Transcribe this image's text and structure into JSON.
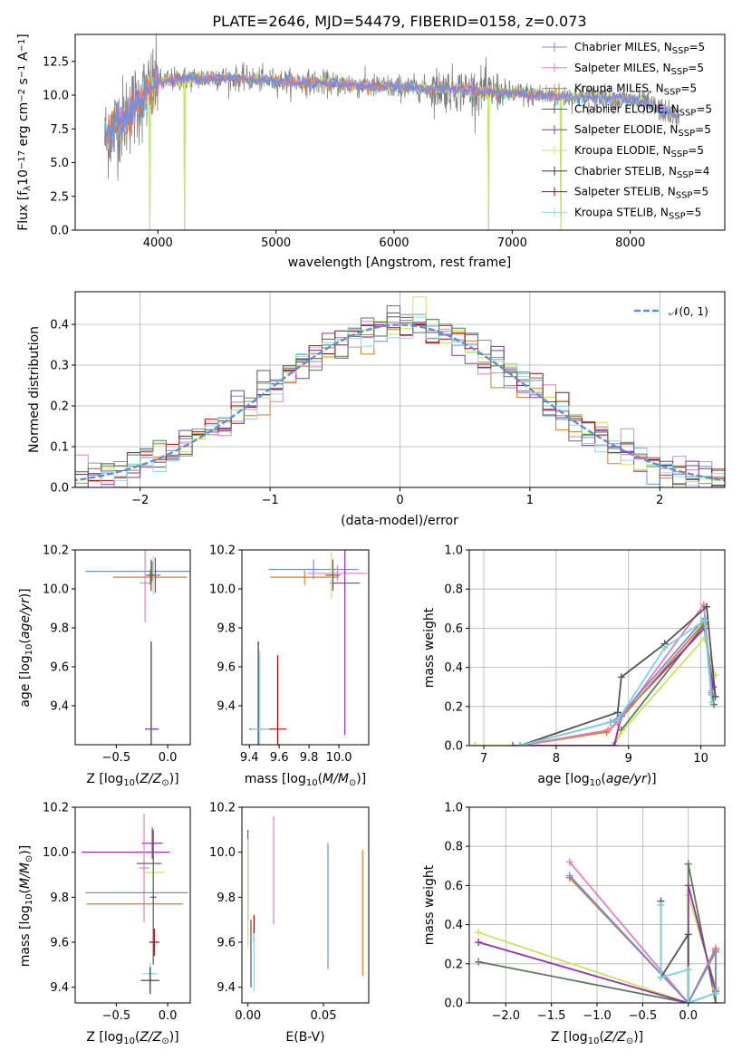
{
  "figure": {
    "title": "PLATE=2646, MJD=54479, FIBERID=0158, z=0.073",
    "colors": [
      "#6f8fe0",
      "#f07a6a",
      "#e57fbf",
      "#e1781e",
      "#9a2db3",
      "#c9e657",
      "#555555",
      "#b30000",
      "#8ed8ec",
      "#5a7a5a",
      "#808080",
      "#76d7d7"
    ]
  },
  "chart_data": [
    {
      "id": "spectrum",
      "type": "line",
      "xlabel": "wavelength [Angstrom, rest frame]",
      "ylabel": "Flux [f",
      "ylabel_parts": [
        "Flux [f",
        "λ",
        "10",
        "−17",
        " erg cm",
        "−2",
        " s",
        "−1",
        " A",
        "−1",
        "]"
      ],
      "xlim": [
        3300,
        8800
      ],
      "ylim": [
        0,
        14.5
      ],
      "xticks": [
        4000,
        5000,
        6000,
        7000,
        8000
      ],
      "yticks": [
        0.0,
        2.5,
        5.0,
        7.5,
        10.0,
        12.5
      ],
      "grid": false,
      "legend_position": "top-right",
      "legend": [
        {
          "text": "Chabrier MILES, N",
          "sub": "SSP",
          "tail": "=5",
          "color": "#6f8fe0"
        },
        {
          "text": "Salpeter MILES, N",
          "sub": "SSP",
          "tail": "=5",
          "color": "#e57fbf"
        },
        {
          "text": "Kroupa MILES, N",
          "sub": "SSP",
          "tail": "=5",
          "color": "#e1781e"
        },
        {
          "text": "Chabrier ELODIE, N",
          "sub": "SSP",
          "tail": "=5",
          "color": "#555555"
        },
        {
          "text": "Salpeter ELODIE, N",
          "sub": "SSP",
          "tail": "=5",
          "color": "#9a2db3"
        },
        {
          "text": "Kroupa ELODIE, N",
          "sub": "SSP",
          "tail": "=5",
          "color": "#c9e657"
        },
        {
          "text": "Chabrier STELIB, N",
          "sub": "SSP",
          "tail": "=4",
          "color": "#333333"
        },
        {
          "text": "Salpeter STELIB, N",
          "sub": "SSP",
          "tail": "=5",
          "color": "#b30000"
        },
        {
          "text": "Kroupa STELIB, N",
          "sub": "SSP",
          "tail": "=5",
          "color": "#8ed8ec"
        }
      ],
      "continuum": [
        [
          3550,
          6.8
        ],
        [
          3700,
          8.2
        ],
        [
          3850,
          9.6
        ],
        [
          4000,
          11.0
        ],
        [
          4200,
          11.2
        ],
        [
          4500,
          11.3
        ],
        [
          4800,
          11.2
        ],
        [
          5100,
          11.0
        ],
        [
          5400,
          10.9
        ],
        [
          5700,
          10.7
        ],
        [
          6000,
          10.6
        ],
        [
          6300,
          10.5
        ],
        [
          6600,
          10.4
        ],
        [
          6900,
          10.2
        ],
        [
          7200,
          10.0
        ],
        [
          7500,
          9.9
        ],
        [
          7800,
          9.8
        ],
        [
          8100,
          9.5
        ],
        [
          8400,
          8.4
        ]
      ],
      "dips": [
        [
          3934,
          0.0
        ],
        [
          4225,
          0.0
        ],
        [
          6800,
          0.0
        ],
        [
          7410,
          0.0
        ]
      ]
    },
    {
      "id": "residuals",
      "type": "line",
      "xlabel": "(data-model)/error",
      "ylabel": "Normed distribution",
      "xlim": [
        -2.5,
        2.5
      ],
      "ylim": [
        0,
        0.48
      ],
      "xticks": [
        -2,
        -1,
        0,
        1,
        2
      ],
      "xticklabels": [
        "−2",
        "−1",
        "0",
        "1",
        "2"
      ],
      "yticks": [
        0.0,
        0.1,
        0.2,
        0.3,
        0.4
      ],
      "grid": true,
      "legend_position": "top-right",
      "legend": [
        {
          "text": "𝒩(0, 1)",
          "color": "#5b8fd6"
        }
      ]
    },
    {
      "id": "age-vs-Z",
      "type": "scatter",
      "xlabel": "Z [log",
      "xlabel_parts": [
        "Z [log",
        "10",
        "(",
        "Z/Z",
        "⊙",
        ")]"
      ],
      "ylabel_parts": [
        "age  [log",
        "10",
        "(",
        "age/yr",
        ")]"
      ],
      "xlim": [
        -0.9,
        0.22
      ],
      "ylim": [
        9.2,
        10.2
      ],
      "xticks": [
        -0.5,
        0.0
      ],
      "xticklabels": [
        "−0.5",
        "0.0"
      ],
      "yticks": [
        9.4,
        9.6,
        9.8,
        10.0,
        10.2
      ],
      "points": [
        {
          "x": -0.15,
          "y": 10.09,
          "xerr": 0.65,
          "yerr": 0.05,
          "color": "#6f8fe0"
        },
        {
          "x": -0.17,
          "y": 10.06,
          "xerr": 0.36,
          "yerr": 0.04,
          "color": "#e1781e"
        },
        {
          "x": -0.22,
          "y": 10.03,
          "xerr": 0.05,
          "yerr": 0.2,
          "color": "#e57fbf"
        },
        {
          "x": -0.12,
          "y": 10.07,
          "xerr": 0.05,
          "yerr": 0.09,
          "color": "#9a2db3"
        },
        {
          "x": -0.14,
          "y": 10.07,
          "xerr": 0.04,
          "yerr": 0.1,
          "color": "#c9e657"
        },
        {
          "x": -0.16,
          "y": 10.07,
          "xerr": 0.05,
          "yerr": 0.08,
          "color": "#555555"
        },
        {
          "x": -0.16,
          "y": 9.28,
          "xerr": 0.06,
          "yerr": 0.45,
          "color": "#333333"
        },
        {
          "x": -0.15,
          "y": 9.28,
          "xerr": 0.05,
          "yerr": 0.0,
          "color": "#b30000"
        },
        {
          "x": -0.14,
          "y": 9.28,
          "xerr": 0.06,
          "yerr": 0.0,
          "color": "#8ed8ec"
        },
        {
          "x": -0.14,
          "y": 9.28,
          "xerr": 0.05,
          "yerr": 0.0,
          "color": "#9a2db3"
        }
      ]
    },
    {
      "id": "age-vs-mass",
      "type": "scatter",
      "xlabel_parts": [
        "mass [log",
        "10",
        "(",
        "M/M",
        "⊙",
        ")]"
      ],
      "xlim": [
        9.35,
        10.2
      ],
      "ylim": [
        9.2,
        10.2
      ],
      "xticks": [
        9.4,
        9.6,
        9.8,
        10.0
      ],
      "xticklabels": [
        "9.4",
        "9.6",
        "9.8",
        "10.0"
      ],
      "yticks": [
        9.4,
        9.6,
        9.8,
        10.0,
        10.2
      ],
      "points": [
        {
          "x": 9.83,
          "y": 10.1,
          "xerr": 0.3,
          "yerr": 0.05,
          "color": "#6f8fe0"
        },
        {
          "x": 9.77,
          "y": 10.06,
          "xerr": 0.23,
          "yerr": 0.04,
          "color": "#e1781e"
        },
        {
          "x": 9.99,
          "y": 10.08,
          "xerr": 0.2,
          "yerr": 0.04,
          "color": "#e57fbf"
        },
        {
          "x": 10.04,
          "y": 10.03,
          "xerr": 0.1,
          "yerr": 0.78,
          "color": "#9a2db3"
        },
        {
          "x": 9.95,
          "y": 10.07,
          "xerr": 0.04,
          "yerr": 0.12,
          "color": "#c9e657"
        },
        {
          "x": 9.96,
          "y": 10.07,
          "xerr": 0.05,
          "yerr": 0.08,
          "color": "#555555"
        },
        {
          "x": 9.46,
          "y": 9.28,
          "xerr": 0.06,
          "yerr": 0.45,
          "color": "#333333"
        },
        {
          "x": 9.59,
          "y": 9.28,
          "xerr": 0.06,
          "yerr": 0.38,
          "color": "#b30000"
        },
        {
          "x": 9.47,
          "y": 9.28,
          "xerr": 0.06,
          "yerr": 0.4,
          "color": "#8ed8ec"
        }
      ]
    },
    {
      "id": "massweight-vs-age",
      "type": "line",
      "ylabel": "mass weight",
      "xlabel_parts": [
        "age  [log",
        "10",
        "(",
        "age/yr",
        ")]"
      ],
      "xlim": [
        6.8,
        10.33
      ],
      "ylim": [
        0,
        1.0
      ],
      "xticks": [
        7,
        8,
        9,
        10
      ],
      "yticks": [
        0.0,
        0.2,
        0.4,
        0.6,
        0.8,
        1.0
      ],
      "grid": true,
      "series": [
        {
          "color": "#5a7a5a",
          "x": [
            6.88,
            8.8,
            8.9,
            10.05,
            10.18
          ],
          "y": [
            0.0,
            0.0,
            0.08,
            0.62,
            0.21
          ]
        },
        {
          "color": "#c9e657",
          "x": [
            6.88,
            8.78,
            8.88,
            10.05,
            10.2
          ],
          "y": [
            0.0,
            0.0,
            0.06,
            0.55,
            0.36
          ]
        },
        {
          "color": "#9a2db3",
          "x": [
            7.4,
            8.8,
            8.9,
            10.05,
            10.17
          ],
          "y": [
            0.0,
            0.0,
            0.15,
            0.6,
            0.3
          ]
        },
        {
          "color": "#e1781e",
          "x": [
            7.5,
            8.7,
            8.85,
            10.05,
            10.15
          ],
          "y": [
            0.0,
            0.07,
            0.12,
            0.63,
            0.27
          ]
        },
        {
          "color": "#e57fbf",
          "x": [
            7.5,
            8.72,
            8.87,
            10.04,
            10.15
          ],
          "y": [
            0.0,
            0.08,
            0.13,
            0.72,
            0.28
          ]
        },
        {
          "color": "#6f8fe0",
          "x": [
            7.5,
            8.75,
            8.88,
            10.05,
            10.15
          ],
          "y": [
            0.0,
            0.12,
            0.15,
            0.65,
            0.26
          ]
        },
        {
          "color": "#555555",
          "x": [
            7.5,
            8.85,
            8.9,
            9.5,
            10.08,
            10.2
          ],
          "y": [
            0.0,
            0.17,
            0.35,
            0.52,
            0.71,
            0.25
          ]
        },
        {
          "color": "#76d7d7",
          "x": [
            7.5,
            8.85,
            9.5,
            10.05,
            10.15
          ],
          "y": [
            0.0,
            0.13,
            0.5,
            0.64,
            0.22
          ]
        }
      ]
    },
    {
      "id": "mass-vs-Z",
      "type": "scatter",
      "xlabel_parts": [
        "Z [log",
        "10",
        "(",
        "Z/Z",
        "⊙",
        ")]"
      ],
      "ylabel_parts": [
        "mass [log",
        "10",
        "(",
        "M/M",
        "⊙",
        ")]"
      ],
      "xlim": [
        -0.9,
        0.22
      ],
      "ylim": [
        9.33,
        10.2
      ],
      "xticks": [
        -0.5,
        0.0
      ],
      "xticklabels": [
        "−0.5",
        "0.0"
      ],
      "yticks": [
        9.4,
        9.6,
        9.8,
        10.0,
        10.2
      ],
      "points": [
        {
          "x": -0.41,
          "y": 10.0,
          "xerr": 0.43,
          "yerr": 0.0,
          "color": "#9a2db3"
        },
        {
          "x": -0.15,
          "y": 10.04,
          "xerr": 0.1,
          "yerr": 0.07,
          "color": "#9a2db3"
        },
        {
          "x": -0.23,
          "y": 9.93,
          "xerr": 0.05,
          "yerr": 0.24,
          "color": "#e57fbf"
        },
        {
          "x": -0.18,
          "y": 9.95,
          "xerr": 0.12,
          "yerr": 0.0,
          "color": "#555555"
        },
        {
          "x": -0.13,
          "y": 9.91,
          "xerr": 0.1,
          "yerr": 0.0,
          "color": "#c9e657"
        },
        {
          "x": -0.3,
          "y": 9.82,
          "xerr": 0.5,
          "yerr": 0.0,
          "color": "#6f8fe0"
        },
        {
          "x": -0.32,
          "y": 9.77,
          "xerr": 0.47,
          "yerr": 0.0,
          "color": "#e1781e"
        },
        {
          "x": -0.14,
          "y": 9.8,
          "xerr": 0.03,
          "yerr": 0.3,
          "color": "#555555"
        },
        {
          "x": -0.13,
          "y": 9.6,
          "xerr": 0.05,
          "yerr": 0.06,
          "color": "#b30000"
        },
        {
          "x": -0.17,
          "y": 9.46,
          "xerr": 0.07,
          "yerr": 0.05,
          "color": "#8ed8ec"
        },
        {
          "x": -0.17,
          "y": 9.43,
          "xerr": 0.09,
          "yerr": 0.06,
          "color": "#333333"
        }
      ]
    },
    {
      "id": "mass-vs-EBV",
      "type": "scatter",
      "xlabel": "E(B-V)",
      "xlim": [
        -0.004,
        0.08
      ],
      "ylim": [
        9.33,
        10.2
      ],
      "xticks": [
        0.0,
        0.05
      ],
      "xticklabels": [
        "0.00",
        "0.05"
      ],
      "yticks": [
        9.4,
        9.6,
        9.8,
        10.0,
        10.2
      ],
      "points": [
        {
          "x": 0.0,
          "y": 9.9,
          "xerr": 0.0,
          "yerr": 0.2,
          "color": "#9a2db3"
        },
        {
          "x": 0.0,
          "y": 9.82,
          "xerr": 0.0,
          "yerr": 0.24,
          "color": "#c9e657"
        },
        {
          "x": 0.002,
          "y": 9.55,
          "xerr": 0.0,
          "yerr": 0.15,
          "color": "#555555"
        },
        {
          "x": 0.004,
          "y": 9.66,
          "xerr": 0.0,
          "yerr": 0.06,
          "color": "#b30000"
        },
        {
          "x": 0.004,
          "y": 9.51,
          "xerr": 0.0,
          "yerr": 0.13,
          "color": "#8ed8ec"
        },
        {
          "x": 0.017,
          "y": 9.92,
          "xerr": 0.0,
          "yerr": 0.24,
          "color": "#e57fbf"
        },
        {
          "x": 0.053,
          "y": 9.76,
          "xerr": 0.0,
          "yerr": 0.28,
          "color": "#6f8fe0"
        },
        {
          "x": 0.076,
          "y": 9.73,
          "xerr": 0.0,
          "yerr": 0.28,
          "color": "#e1781e"
        }
      ]
    },
    {
      "id": "massweight-vs-Z",
      "type": "line",
      "ylabel": "mass weight",
      "xlabel_parts": [
        "Z [log",
        "10",
        "(",
        "Z/Z",
        "⊙",
        ")]"
      ],
      "xlim": [
        -2.4,
        0.4
      ],
      "ylim": [
        0,
        1.0
      ],
      "xticks": [
        -2.0,
        -1.5,
        -1.0,
        -0.5,
        0.0
      ],
      "xticklabels": [
        "−2.0",
        "−1.5",
        "−1.0",
        "−0.5",
        "0.0"
      ],
      "yticks": [
        0.0,
        0.2,
        0.4,
        0.6,
        0.8,
        1.0
      ],
      "grid": true,
      "series": [
        {
          "color": "#5a7a5a",
          "x": [
            -2.3,
            0.0,
            0.0,
            0.3,
            0.3
          ],
          "y": [
            0.21,
            0.0,
            0.71,
            0.0,
            0.07
          ]
        },
        {
          "color": "#c9e657",
          "x": [
            -2.3,
            0.0,
            0.0,
            0.3,
            0.3
          ],
          "y": [
            0.36,
            0.0,
            0.55,
            0.08,
            0.07
          ]
        },
        {
          "color": "#9a2db3",
          "x": [
            -2.3,
            0.0,
            0.0,
            0.3,
            0.3
          ],
          "y": [
            0.31,
            0.0,
            0.6,
            0.06,
            0.05
          ]
        },
        {
          "color": "#e57fbf",
          "x": [
            -1.3,
            0.0,
            0.0,
            0.3,
            0.3
          ],
          "y": [
            0.72,
            0.0,
            0.0,
            0.28,
            0.05
          ]
        },
        {
          "color": "#e1781e",
          "x": [
            -1.3,
            0.0,
            0.0,
            0.3,
            0.3
          ],
          "y": [
            0.64,
            0.0,
            0.0,
            0.27,
            0.06
          ]
        },
        {
          "color": "#6f8fe0",
          "x": [
            -1.3,
            0.0,
            0.0,
            0.3,
            0.3
          ],
          "y": [
            0.65,
            0.0,
            0.0,
            0.26,
            0.06
          ]
        },
        {
          "color": "#555555",
          "x": [
            -0.3,
            -0.3,
            0.0,
            0.0,
            0.3
          ],
          "y": [
            0.52,
            0.13,
            0.35,
            0.0,
            0.05
          ]
        },
        {
          "color": "#76d7d7",
          "x": [
            -0.3,
            -0.3,
            0.0,
            0.0,
            0.3
          ],
          "y": [
            0.5,
            0.13,
            0.17,
            0.0,
            0.05
          ]
        }
      ]
    }
  ]
}
